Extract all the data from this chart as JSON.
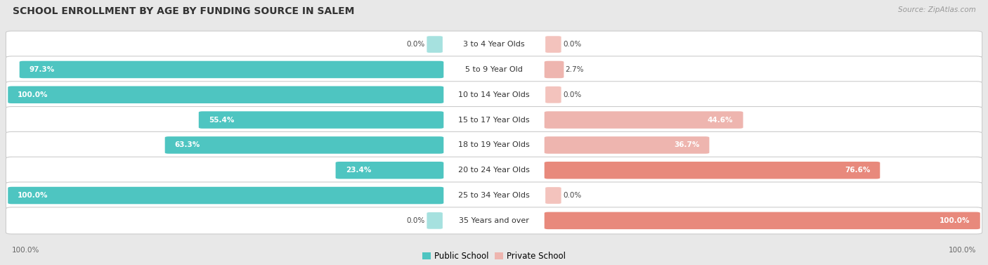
{
  "title": "SCHOOL ENROLLMENT BY AGE BY FUNDING SOURCE IN SALEM",
  "source": "Source: ZipAtlas.com",
  "categories": [
    "3 to 4 Year Olds",
    "5 to 9 Year Old",
    "10 to 14 Year Olds",
    "15 to 17 Year Olds",
    "18 to 19 Year Olds",
    "20 to 24 Year Olds",
    "25 to 34 Year Olds",
    "35 Years and over"
  ],
  "public_values": [
    0.0,
    97.3,
    100.0,
    55.4,
    63.3,
    23.4,
    100.0,
    0.0
  ],
  "private_values": [
    0.0,
    2.7,
    0.0,
    44.6,
    36.7,
    76.6,
    0.0,
    100.0
  ],
  "public_color": "#4EC5C1",
  "private_color": "#E8897C",
  "private_color_light": "#EEB5AF",
  "background_color": "#E8E8E8",
  "row_bg_color": "#F5F5F5",
  "title_fontsize": 10,
  "label_fontsize": 8,
  "value_fontsize": 7.5,
  "legend_fontsize": 8.5,
  "source_fontsize": 7.5
}
